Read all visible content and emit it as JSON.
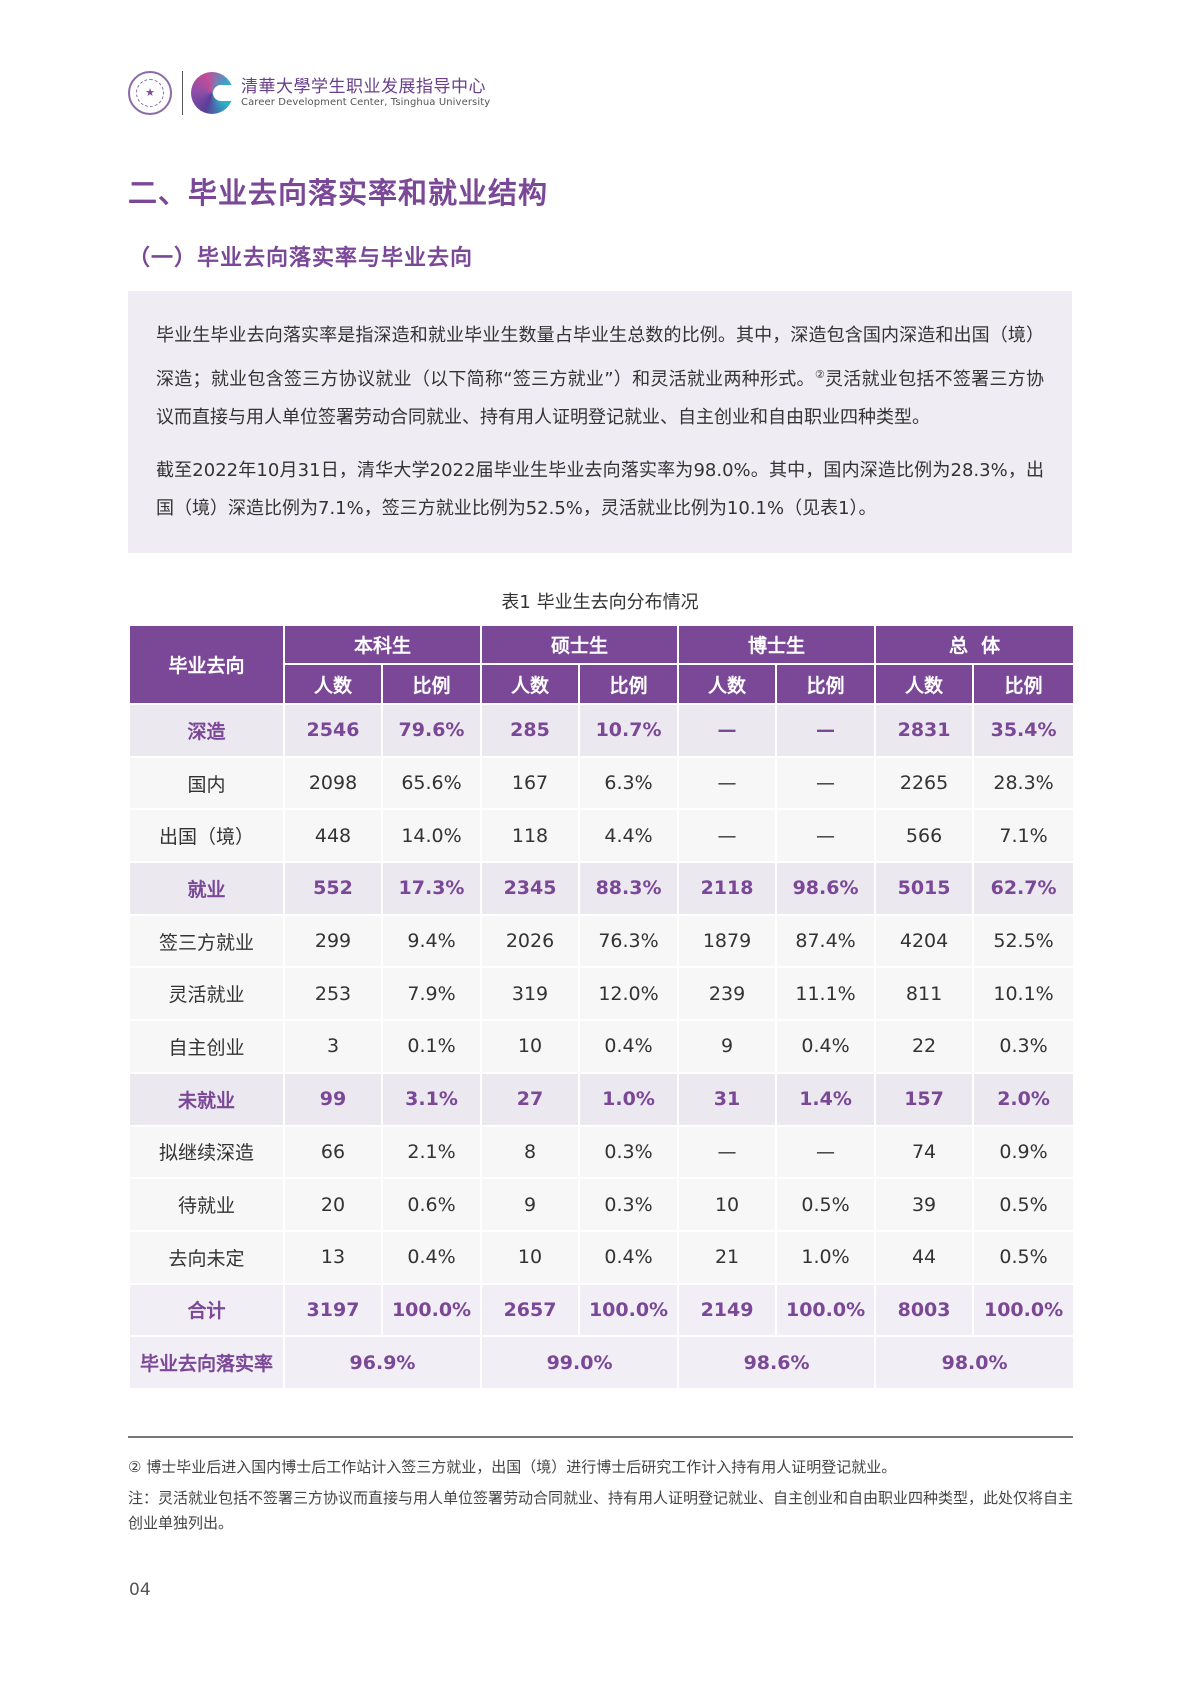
{
  "header": {
    "logo_cn": "清華大學学生职业发展指导中心",
    "logo_en": "Career Development Center, Tsinghua University",
    "seal_icon": "tsinghua-seal-icon",
    "brand_icon": "career-center-c-icon"
  },
  "section_title": "二、毕业去向落实率和就业结构",
  "subsection_title": "（一）毕业去向落实率与毕业去向",
  "note_box": {
    "para1_a": "毕业生毕业去向落实率是指深造和就业毕业生数量占毕业生总数的比例。其中，深造包含国内深造和出国（境）深造；就业包含签三方协议就业（以下简称“签三方就业”）和灵活就业两种形式。",
    "para1_sup": "②",
    "para1_b": "灵活就业包括不签署三方协议而直接与用人单位签署劳动合同就业、持有用人证明登记就业、自主创业和自由职业四种类型。",
    "para2": "截至2022年10月31日，清华大学2022届毕业生毕业去向落实率为98.0%。其中，国内深造比例为28.3%，出国（境）深造比例为7.1%，签三方就业比例为52.5%，灵活就业比例为10.1%（见表1）。"
  },
  "table": {
    "caption": "表1  毕业生去向分布情况",
    "row_header": "毕业去向",
    "groups": [
      "本科生",
      "硕士生",
      "博士生",
      "总  体"
    ],
    "sub_headers": [
      "人数",
      "比例"
    ],
    "rows": [
      {
        "label": "深造",
        "type": "cat",
        "cells": [
          "2546",
          "79.6%",
          "285",
          "10.7%",
          "—",
          "—",
          "2831",
          "35.4%"
        ]
      },
      {
        "label": "国内",
        "type": "sub",
        "cells": [
          "2098",
          "65.6%",
          "167",
          "6.3%",
          "—",
          "—",
          "2265",
          "28.3%"
        ]
      },
      {
        "label": "出国（境）",
        "type": "sub",
        "cells": [
          "448",
          "14.0%",
          "118",
          "4.4%",
          "—",
          "—",
          "566",
          "7.1%"
        ]
      },
      {
        "label": "就业",
        "type": "cat",
        "cells": [
          "552",
          "17.3%",
          "2345",
          "88.3%",
          "2118",
          "98.6%",
          "5015",
          "62.7%"
        ]
      },
      {
        "label": "签三方就业",
        "type": "sub",
        "cells": [
          "299",
          "9.4%",
          "2026",
          "76.3%",
          "1879",
          "87.4%",
          "4204",
          "52.5%"
        ]
      },
      {
        "label": "灵活就业",
        "type": "sub",
        "cells": [
          "253",
          "7.9%",
          "319",
          "12.0%",
          "239",
          "11.1%",
          "811",
          "10.1%"
        ]
      },
      {
        "label": "自主创业",
        "type": "sub",
        "cells": [
          "3",
          "0.1%",
          "10",
          "0.4%",
          "9",
          "0.4%",
          "22",
          "0.3%"
        ]
      },
      {
        "label": "未就业",
        "type": "cat",
        "cells": [
          "99",
          "3.1%",
          "27",
          "1.0%",
          "31",
          "1.4%",
          "157",
          "2.0%"
        ]
      },
      {
        "label": "拟继续深造",
        "type": "sub",
        "cells": [
          "66",
          "2.1%",
          "8",
          "0.3%",
          "—",
          "—",
          "74",
          "0.9%"
        ]
      },
      {
        "label": "待就业",
        "type": "sub",
        "cells": [
          "20",
          "0.6%",
          "9",
          "0.3%",
          "10",
          "0.5%",
          "39",
          "0.5%"
        ]
      },
      {
        "label": "去向未定",
        "type": "sub",
        "cells": [
          "13",
          "0.4%",
          "10",
          "0.4%",
          "21",
          "1.0%",
          "44",
          "0.5%"
        ]
      },
      {
        "label": "合计",
        "type": "total",
        "cells": [
          "3197",
          "100.0%",
          "2657",
          "100.0%",
          "2149",
          "100.0%",
          "8003",
          "100.0%"
        ]
      }
    ],
    "rate_row": {
      "label": "毕业去向落实率",
      "values": [
        "96.9%",
        "99.0%",
        "98.6%",
        "98.0%"
      ]
    }
  },
  "footnotes": {
    "fn1": "②   博士毕业后进入国内博士后工作站计入签三方就业，出国（境）进行博士后研究工作计入持有用人证明登记就业。",
    "fn2": "注：灵活就业包括不签署三方协议而直接与用人单位签署劳动合同就业、持有用人证明登记就业、自主创业和自由职业四种类型，此处仅将自主创业单独列出。"
  },
  "page_number": "04",
  "colors": {
    "accent": "#7a4896",
    "box_bg": "#efecf3",
    "cat_row_bg": "#ece8f0",
    "row_bg": "#f7f7f7"
  }
}
